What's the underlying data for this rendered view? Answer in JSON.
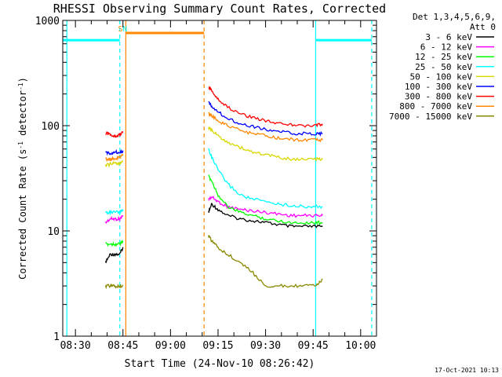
{
  "chart_data": {
    "type": "line",
    "title": "RHESSI Observing Summary Count Rates, Corrected",
    "xlabel": "Start Time (24-Nov-10 08:26:42)",
    "ylabel_main": "Corrected Count Rate (s",
    "ylabel_sup1": "-1",
    "ylabel_mid": " detector",
    "ylabel_sup2": "-1",
    "ylabel_end": ")",
    "y_scale": "log",
    "ylim": [
      1,
      1000
    ],
    "xlim_minutes": [
      506,
      605
    ],
    "y_ticks": [
      {
        "value": 1,
        "label": "1"
      },
      {
        "value": 10,
        "label": "10"
      },
      {
        "value": 100,
        "label": "100"
      },
      {
        "value": 1000,
        "label": "1000"
      }
    ],
    "x_ticks": [
      {
        "minute": 510,
        "label": "08:30"
      },
      {
        "minute": 525,
        "label": "08:45"
      },
      {
        "minute": 540,
        "label": "09:00"
      },
      {
        "minute": 555,
        "label": "09:15"
      },
      {
        "minute": 570,
        "label": "09:30"
      },
      {
        "minute": 585,
        "label": "09:45"
      },
      {
        "minute": 600,
        "label": "10:00"
      }
    ],
    "legend": {
      "placement": "right",
      "header_1": "Det 1,3,4,5,6,9,",
      "header_2": "Att 0",
      "entries": [
        {
          "label": "3 - 6 keV",
          "color": "#000000"
        },
        {
          "label": "6 - 12 keV",
          "color": "#ff00ff"
        },
        {
          "label": "12 - 25 keV",
          "color": "#00ff00"
        },
        {
          "label": "25 - 50 keV",
          "color": "#00ffff"
        },
        {
          "label": "50 - 100 keV",
          "color": "#d8d800"
        },
        {
          "label": "100 - 300 keV",
          "color": "#0000ff"
        },
        {
          "label": "300 - 800 keV",
          "color": "#ff0000"
        },
        {
          "label": "800 - 7000 keV",
          "color": "#ff8800"
        },
        {
          "label": "7000 - 15000 keV",
          "color": "#888800"
        }
      ]
    },
    "markers": [
      {
        "label": "S",
        "minute": 524.2,
        "color": "#ff8800"
      },
      {
        "label": "N",
        "minute": 525.6,
        "color": "#00ffff"
      }
    ],
    "status_bars": [
      {
        "name": "night",
        "color": "#00ffff",
        "segments": [
          [
            506,
            524.0
          ],
          [
            585.8,
            603.5
          ]
        ],
        "level": 650
      },
      {
        "name": "saa",
        "color": "#ff8800",
        "segments": [
          [
            525.9,
            550.6
          ]
        ],
        "level": 760
      }
    ],
    "vertical_lines": [
      {
        "minute": 507.3,
        "color": "#00ffff",
        "style": "solid"
      },
      {
        "minute": 524.0,
        "color": "#00ffff",
        "style": "dashed"
      },
      {
        "minute": 525.9,
        "color": "#ff8800",
        "style": "solid"
      },
      {
        "minute": 550.6,
        "color": "#ff8800",
        "style": "dashed"
      },
      {
        "minute": 585.8,
        "color": "#00ffff",
        "style": "solid"
      },
      {
        "minute": 603.5,
        "color": "#00ffff",
        "style": "dashed"
      }
    ],
    "series": [
      {
        "name": "3 - 6 keV",
        "color": "#000000",
        "x": [
          519.5,
          521,
          522.5,
          524,
          525,
          552,
          553,
          555,
          558,
          562,
          566,
          570,
          574,
          578,
          582,
          586,
          588
        ],
        "y": [
          5,
          6,
          6,
          6,
          7,
          15,
          18,
          16,
          14,
          13,
          12.5,
          12,
          11.5,
          11,
          11,
          11,
          11
        ]
      },
      {
        "name": "6 - 12 keV",
        "color": "#ff00ff",
        "x": [
          519.5,
          521,
          522.5,
          524,
          525,
          552,
          553,
          555,
          558,
          562,
          566,
          570,
          574,
          578,
          582,
          586,
          588
        ],
        "y": [
          12,
          13,
          13,
          13,
          14,
          20,
          21,
          19,
          17,
          16,
          15.5,
          15,
          14.5,
          14,
          14,
          14,
          14
        ]
      },
      {
        "name": "12 - 25 keV",
        "color": "#00ff00",
        "x": [
          519.5,
          521,
          522.5,
          524,
          525,
          552,
          553,
          555,
          558,
          562,
          566,
          570,
          574,
          578,
          582,
          586,
          588
        ],
        "y": [
          7.5,
          7.5,
          7.5,
          7.5,
          8,
          33,
          30,
          22,
          17,
          15,
          14,
          13,
          12.5,
          12,
          12,
          12,
          12
        ]
      },
      {
        "name": "25 - 50 keV",
        "color": "#00ffff",
        "x": [
          519.5,
          521,
          522.5,
          524,
          525,
          552,
          553,
          555,
          558,
          562,
          566,
          570,
          574,
          578,
          582,
          586,
          588
        ],
        "y": [
          15,
          15,
          15,
          15,
          16,
          60,
          50,
          38,
          28,
          22,
          20,
          19,
          18,
          17.5,
          17,
          17,
          17
        ]
      },
      {
        "name": "50 - 100 keV",
        "color": "#d8d800",
        "x": [
          519.5,
          521,
          522.5,
          524,
          525,
          552,
          553,
          555,
          558,
          562,
          566,
          570,
          574,
          578,
          582,
          586,
          588
        ],
        "y": [
          42,
          43,
          44,
          44,
          46,
          95,
          90,
          80,
          70,
          62,
          56,
          53,
          50,
          48,
          48,
          48,
          48
        ]
      },
      {
        "name": "100 - 300 keV",
        "color": "#0000ff",
        "x": [
          519.5,
          521,
          522.5,
          524,
          525,
          552,
          553,
          555,
          558,
          562,
          566,
          570,
          574,
          578,
          582,
          586,
          588
        ],
        "y": [
          55,
          55,
          56,
          56,
          58,
          165,
          155,
          135,
          118,
          105,
          98,
          92,
          88,
          85,
          84,
          84,
          84
        ]
      },
      {
        "name": "300 - 800 keV",
        "color": "#ff0000",
        "x": [
          519.5,
          521,
          522.5,
          524,
          525,
          552,
          553,
          555,
          558,
          562,
          566,
          570,
          574,
          578,
          582,
          586,
          588
        ],
        "y": [
          85,
          82,
          80,
          82,
          88,
          230,
          215,
          180,
          150,
          130,
          120,
          112,
          106,
          102,
          100,
          100,
          104
        ]
      },
      {
        "name": "800 - 7000 keV",
        "color": "#ff8800",
        "x": [
          519.5,
          521,
          522.5,
          524,
          525,
          552,
          553,
          555,
          558,
          562,
          566,
          570,
          574,
          578,
          582,
          586,
          588
        ],
        "y": [
          48,
          48,
          49,
          50,
          52,
          130,
          125,
          112,
          100,
          90,
          84,
          80,
          76,
          74,
          73,
          73,
          73
        ]
      },
      {
        "name": "7000 - 15000 keV",
        "color": "#888800",
        "x": [
          519.5,
          521,
          522.5,
          524,
          525,
          552,
          553,
          555,
          558,
          562,
          566,
          570,
          574,
          578,
          582,
          586,
          588
        ],
        "y": [
          3,
          3,
          3,
          3,
          3,
          9,
          8,
          7,
          6,
          5,
          4,
          3,
          3,
          3,
          3,
          3,
          3.5
        ]
      }
    ]
  },
  "footer": {
    "timestamp": "17-Oct-2021 10:13"
  }
}
